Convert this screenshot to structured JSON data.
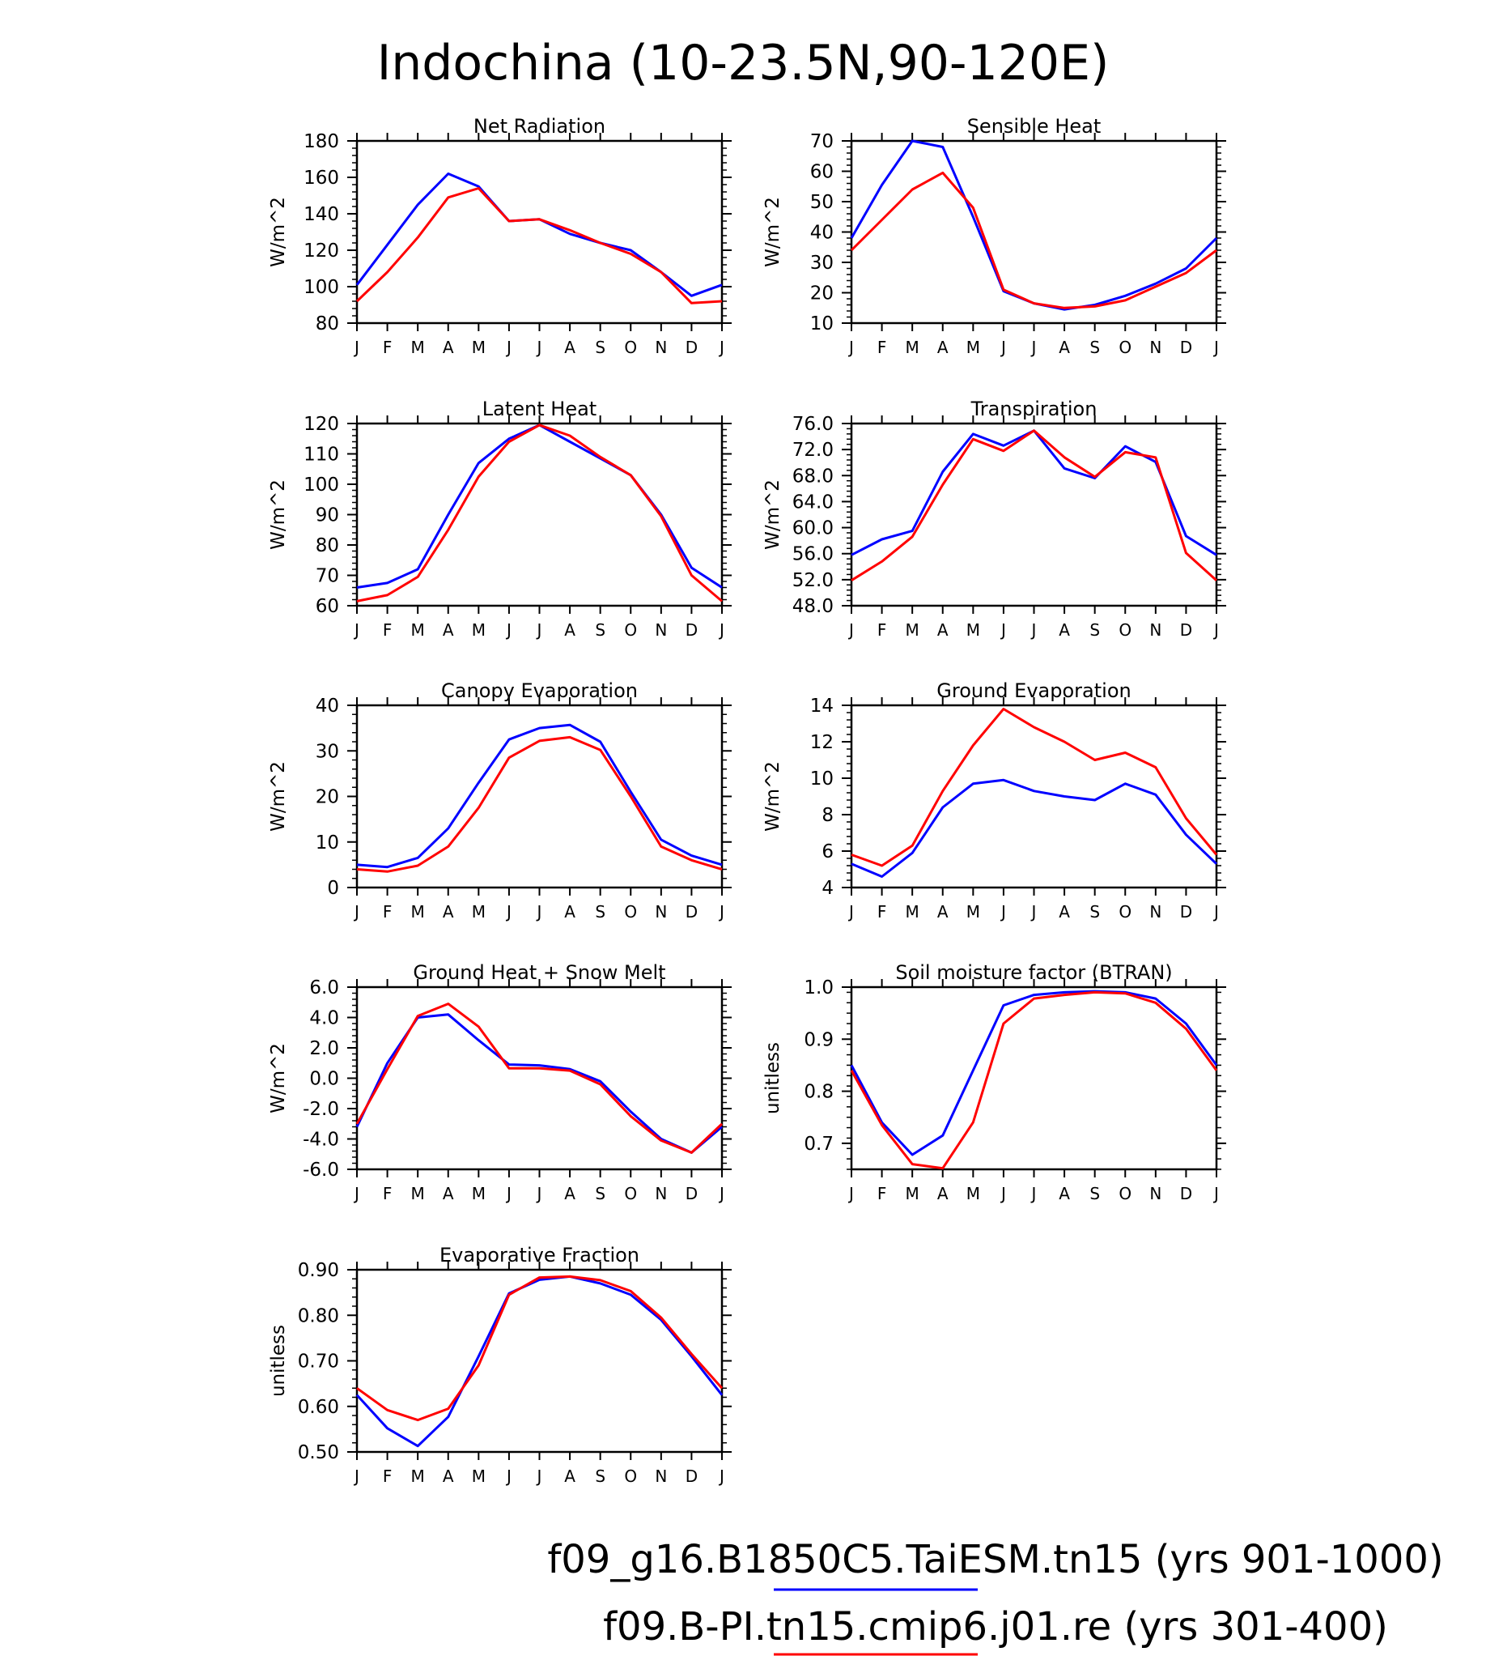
{
  "figure": {
    "title": "Indochina (10-23.5N,90-120E)",
    "legend": [
      {
        "label": "f09_g16.B1850C5.TaiESM.tn15 (yrs 901-1000)",
        "color": "#0000ff"
      },
      {
        "label": "f09.B-PI.tn15.cmip6.j01.re (yrs 301-400)",
        "color": "#ff0000"
      }
    ],
    "month_labels": [
      "J",
      "F",
      "M",
      "A",
      "M",
      "J",
      "J",
      "A",
      "S",
      "O",
      "N",
      "D",
      "J"
    ]
  },
  "chart_data": [
    {
      "type": "line",
      "title": "Net Radiation",
      "ylabel": "W/m^2",
      "ylim": [
        80,
        180
      ],
      "yticks": [
        "80",
        "100",
        "120",
        "140",
        "160",
        "180"
      ],
      "categories": [
        "J",
        "F",
        "M",
        "A",
        "M",
        "J",
        "J",
        "A",
        "S",
        "O",
        "N",
        "D",
        "J"
      ],
      "series": [
        {
          "values": [
            101,
            123,
            145,
            162,
            155,
            136,
            137,
            129,
            124,
            120,
            108,
            95,
            101
          ],
          "color": "#0000ff"
        },
        {
          "values": [
            92,
            108,
            127,
            149,
            154,
            136,
            137,
            131,
            124,
            118,
            108,
            91,
            92
          ],
          "color": "#ff0000"
        }
      ]
    },
    {
      "type": "line",
      "title": "Sensible Heat",
      "ylabel": "W/m^2",
      "ylim": [
        10,
        70
      ],
      "yticks": [
        "10",
        "20",
        "30",
        "40",
        "50",
        "60",
        "70"
      ],
      "categories": [
        "J",
        "F",
        "M",
        "A",
        "M",
        "J",
        "J",
        "A",
        "S",
        "O",
        "N",
        "D",
        "J"
      ],
      "series": [
        {
          "values": [
            38,
            55.5,
            70,
            68,
            45,
            20.5,
            16.5,
            14.5,
            16,
            19,
            23,
            28,
            38
          ],
          "color": "#0000ff"
        },
        {
          "values": [
            34,
            44,
            54,
            59.5,
            48,
            21,
            16.5,
            15,
            15.5,
            17.5,
            22,
            26.5,
            34
          ],
          "color": "#ff0000"
        }
      ]
    },
    {
      "type": "line",
      "title": "Latent Heat",
      "ylabel": "W/m^2",
      "ylim": [
        60,
        120
      ],
      "yticks": [
        "60",
        "70",
        "80",
        "90",
        "100",
        "110",
        "120"
      ],
      "categories": [
        "J",
        "F",
        "M",
        "A",
        "M",
        "J",
        "J",
        "A",
        "S",
        "O",
        "N",
        "D",
        "J"
      ],
      "series": [
        {
          "values": [
            66,
            67.5,
            72,
            90,
            107,
            115,
            119.5,
            114,
            108.5,
            103,
            90,
            72.5,
            66
          ],
          "color": "#0000ff"
        },
        {
          "values": [
            61.5,
            63.5,
            69.5,
            85,
            102.5,
            114,
            119.5,
            116,
            109,
            103,
            89.5,
            70,
            61.5
          ],
          "color": "#ff0000"
        }
      ]
    },
    {
      "type": "line",
      "title": "Transpiration",
      "ylabel": "W/m^2",
      "ylim": [
        48,
        76
      ],
      "yticks": [
        "48.0",
        "52.0",
        "56.0",
        "60.0",
        "64.0",
        "68.0",
        "72.0",
        "76.0"
      ],
      "categories": [
        "J",
        "F",
        "M",
        "A",
        "M",
        "J",
        "J",
        "A",
        "S",
        "O",
        "N",
        "D",
        "J"
      ],
      "series": [
        {
          "values": [
            55.8,
            58.2,
            59.5,
            68.6,
            74.4,
            72.6,
            74.9,
            69.1,
            67.6,
            72.5,
            70.1,
            58.7,
            55.8
          ],
          "color": "#0000ff"
        },
        {
          "values": [
            51.9,
            54.8,
            58.6,
            66.6,
            73.6,
            71.8,
            74.9,
            70.8,
            67.8,
            71.6,
            70.8,
            56.1,
            51.9
          ],
          "color": "#ff0000"
        }
      ]
    },
    {
      "type": "line",
      "title": "Canopy Evaporation",
      "ylabel": "W/m^2",
      "ylim": [
        0,
        40
      ],
      "yticks": [
        "0",
        "10",
        "20",
        "30",
        "40"
      ],
      "categories": [
        "J",
        "F",
        "M",
        "A",
        "M",
        "J",
        "J",
        "A",
        "S",
        "O",
        "N",
        "D",
        "J"
      ],
      "series": [
        {
          "values": [
            5,
            4.5,
            6.5,
            13,
            23,
            32.5,
            35,
            35.7,
            32,
            21,
            10.5,
            7,
            5
          ],
          "color": "#0000ff"
        },
        {
          "values": [
            4,
            3.5,
            4.8,
            9,
            17.5,
            28.5,
            32.2,
            33,
            30.2,
            20,
            9,
            6,
            4
          ],
          "color": "#ff0000"
        }
      ]
    },
    {
      "type": "line",
      "title": "Ground Evaporation",
      "ylabel": "W/m^2",
      "ylim": [
        4,
        14
      ],
      "yticks": [
        "4",
        "6",
        "8",
        "10",
        "12",
        "14"
      ],
      "categories": [
        "J",
        "F",
        "M",
        "A",
        "M",
        "J",
        "J",
        "A",
        "S",
        "O",
        "N",
        "D",
        "J"
      ],
      "series": [
        {
          "values": [
            5.3,
            4.6,
            5.9,
            8.4,
            9.7,
            9.9,
            9.3,
            9.0,
            8.8,
            9.7,
            9.1,
            6.9,
            5.3
          ],
          "color": "#0000ff"
        },
        {
          "values": [
            5.8,
            5.2,
            6.3,
            9.3,
            11.8,
            13.8,
            12.8,
            12.0,
            11.0,
            11.4,
            10.6,
            7.8,
            5.8
          ],
          "color": "#ff0000"
        }
      ]
    },
    {
      "type": "line",
      "title": "Ground Heat + Snow Melt",
      "ylabel": "W/m^2",
      "ylim": [
        -6,
        6
      ],
      "yticks": [
        "-6.0",
        "-4.0",
        "-2.0",
        "0.0",
        "2.0",
        "4.0",
        "6.0"
      ],
      "categories": [
        "J",
        "F",
        "M",
        "A",
        "M",
        "J",
        "J",
        "A",
        "S",
        "O",
        "N",
        "D",
        "J"
      ],
      "series": [
        {
          "values": [
            -3.2,
            1.0,
            4.0,
            4.2,
            2.5,
            0.9,
            0.85,
            0.6,
            -0.2,
            -2.2,
            -4.0,
            -4.9,
            -3.2
          ],
          "color": "#0000ff"
        },
        {
          "values": [
            -3.0,
            0.6,
            4.1,
            4.9,
            3.4,
            0.65,
            0.65,
            0.5,
            -0.4,
            -2.5,
            -4.1,
            -4.9,
            -3.0
          ],
          "color": "#ff0000"
        }
      ]
    },
    {
      "type": "line",
      "title": "Soil moisture factor (BTRAN)",
      "ylabel": "unitless",
      "ylim": [
        0.65,
        1.0
      ],
      "yticks": [
        "0.7",
        "0.8",
        "0.9",
        "1.0"
      ],
      "ytick_values": [
        0.7,
        0.8,
        0.9,
        1.0
      ],
      "categories": [
        "J",
        "F",
        "M",
        "A",
        "M",
        "J",
        "J",
        "A",
        "S",
        "O",
        "N",
        "D",
        "J"
      ],
      "series": [
        {
          "values": [
            0.85,
            0.74,
            0.678,
            0.715,
            0.84,
            0.965,
            0.985,
            0.99,
            0.992,
            0.99,
            0.978,
            0.93,
            0.85
          ],
          "color": "#0000ff"
        },
        {
          "values": [
            0.84,
            0.735,
            0.66,
            0.652,
            0.74,
            0.93,
            0.978,
            0.985,
            0.99,
            0.988,
            0.97,
            0.92,
            0.84
          ],
          "color": "#ff0000"
        }
      ]
    },
    {
      "type": "line",
      "title": "Evaporative Fraction",
      "ylabel": "unitless",
      "ylim": [
        0.5,
        0.9
      ],
      "yticks": [
        "0.50",
        "0.60",
        "0.70",
        "0.80",
        "0.90"
      ],
      "categories": [
        "J",
        "F",
        "M",
        "A",
        "M",
        "J",
        "J",
        "A",
        "S",
        "O",
        "N",
        "D",
        "J"
      ],
      "series": [
        {
          "values": [
            0.625,
            0.552,
            0.513,
            0.577,
            0.71,
            0.848,
            0.878,
            0.885,
            0.87,
            0.845,
            0.79,
            0.71,
            0.625
          ],
          "color": "#0000ff"
        },
        {
          "values": [
            0.64,
            0.592,
            0.57,
            0.595,
            0.69,
            0.845,
            0.883,
            0.885,
            0.877,
            0.853,
            0.795,
            0.715,
            0.64
          ],
          "color": "#ff0000"
        }
      ]
    }
  ]
}
